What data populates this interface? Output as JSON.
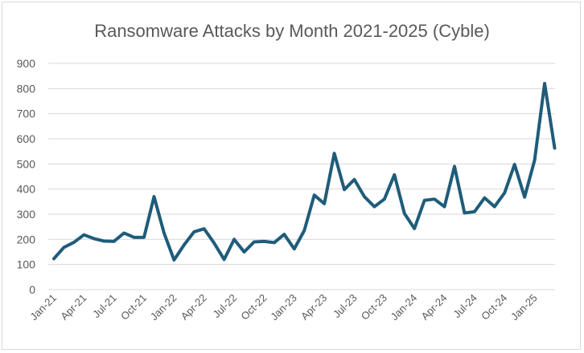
{
  "chart_data": {
    "type": "line",
    "title": "Ransomware Attacks by Month 2021-2025 (Cyble)",
    "xlabel": "",
    "ylabel": "",
    "ylim": [
      0,
      900
    ],
    "yticks": [
      0,
      100,
      200,
      300,
      400,
      500,
      600,
      700,
      800,
      900
    ],
    "grid": true,
    "legend": "none",
    "x": [
      "Jan-21",
      "Feb-21",
      "Mar-21",
      "Apr-21",
      "May-21",
      "Jun-21",
      "Jul-21",
      "Aug-21",
      "Sep-21",
      "Oct-21",
      "Nov-21",
      "Dec-21",
      "Jan-22",
      "Feb-22",
      "Mar-22",
      "Apr-22",
      "May-22",
      "Jun-22",
      "Jul-22",
      "Aug-22",
      "Sep-22",
      "Oct-22",
      "Nov-22",
      "Dec-22",
      "Jan-23",
      "Feb-23",
      "Mar-23",
      "Apr-23",
      "May-23",
      "Jun-23",
      "Jul-23",
      "Aug-23",
      "Sep-23",
      "Oct-23",
      "Nov-23",
      "Dec-23",
      "Jan-24",
      "Feb-24",
      "Mar-24",
      "Apr-24",
      "May-24",
      "Jun-24",
      "Jul-24",
      "Aug-24",
      "Sep-24",
      "Oct-24",
      "Nov-24",
      "Dec-24",
      "Jan-25",
      "Feb-25",
      "Mar-25"
    ],
    "x_tick_labels": [
      "Jan-21",
      "Apr-21",
      "Jul-21",
      "Oct-21",
      "Jan-22",
      "Apr-22",
      "Jul-22",
      "Oct-22",
      "Jan-23",
      "Apr-23",
      "Jul-23",
      "Oct-23",
      "Jan-24",
      "Apr-24",
      "Jul-24",
      "Oct-24",
      "Jan-25"
    ],
    "series": [
      {
        "color": "#1f5c7a",
        "values": [
          123,
          168,
          188,
          218,
          203,
          193,
          192,
          225,
          208,
          208,
          370,
          225,
          118,
          178,
          230,
          242,
          185,
          120,
          200,
          150,
          190,
          192,
          187,
          220,
          162,
          235,
          376,
          342,
          542,
          398,
          438,
          370,
          330,
          360,
          457,
          303,
          243,
          355,
          360,
          330,
          490,
          305,
          310,
          365,
          330,
          385,
          498,
          368,
          515,
          820,
          563
        ]
      }
    ]
  }
}
